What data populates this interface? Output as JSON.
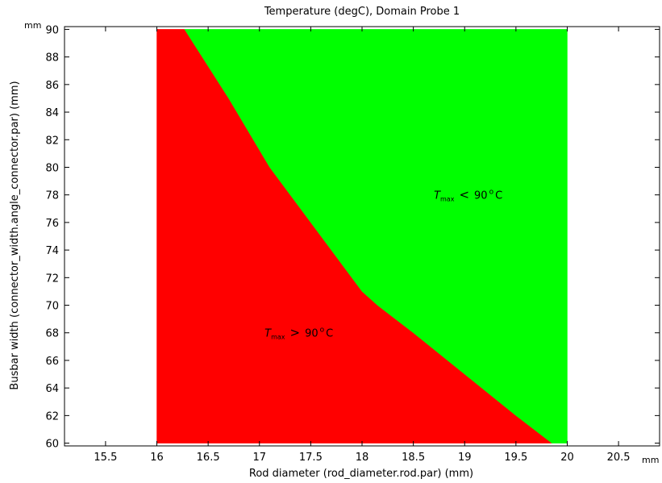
{
  "chart_data": {
    "type": "area",
    "title": "Temperature (degC), Domain Probe 1",
    "xlabel": "Rod diameter (rod_diameter.rod.par) (mm)",
    "ylabel": "Busbar width (connector_width.angle_connector.par) (mm)",
    "x_unit": "mm",
    "y_unit": "mm",
    "xlim": [
      15.1,
      20.9
    ],
    "ylim": [
      59.8,
      90.2
    ],
    "x_ticks": [
      15.5,
      16,
      16.5,
      17,
      17.5,
      18,
      18.5,
      19,
      19.5,
      20,
      20.5
    ],
    "x_tick_labels": [
      "15.5",
      "16",
      "16.5",
      "17",
      "17.5",
      "18",
      "18.5",
      "19",
      "19.5",
      "20",
      "20.5"
    ],
    "y_ticks": [
      60,
      62,
      64,
      66,
      68,
      70,
      72,
      74,
      76,
      78,
      80,
      82,
      84,
      86,
      88,
      90
    ],
    "y_tick_labels": [
      "60",
      "62",
      "64",
      "66",
      "68",
      "70",
      "72",
      "74",
      "76",
      "78",
      "80",
      "82",
      "84",
      "86",
      "88",
      "90"
    ],
    "grid": false,
    "domain": {
      "x": [
        16,
        20
      ],
      "y": [
        60,
        90
      ]
    },
    "boundary": {
      "x": [
        16.27,
        16.7,
        17.1,
        17.5,
        18.0,
        18.15,
        18.5,
        19.0,
        19.5,
        19.85
      ],
      "y": [
        90,
        85,
        80,
        76,
        71,
        70,
        68,
        65,
        62,
        60
      ]
    },
    "regions": [
      {
        "label": "T_max > 90 °C",
        "side": "left",
        "color": "#ff0000",
        "anno": {
          "T": "T",
          "sub": "max",
          "rel": ">",
          "val": "90",
          "deg": "o",
          "unit": "C",
          "x": 17.05,
          "y": 68.0
        }
      },
      {
        "label": "T_max < 90 °C",
        "side": "right",
        "color": "#00ff00",
        "anno": {
          "T": "T",
          "sub": "max",
          "rel": "<",
          "val": "90",
          "deg": "o",
          "unit": "C",
          "x": 18.7,
          "y": 78.0
        }
      }
    ]
  }
}
